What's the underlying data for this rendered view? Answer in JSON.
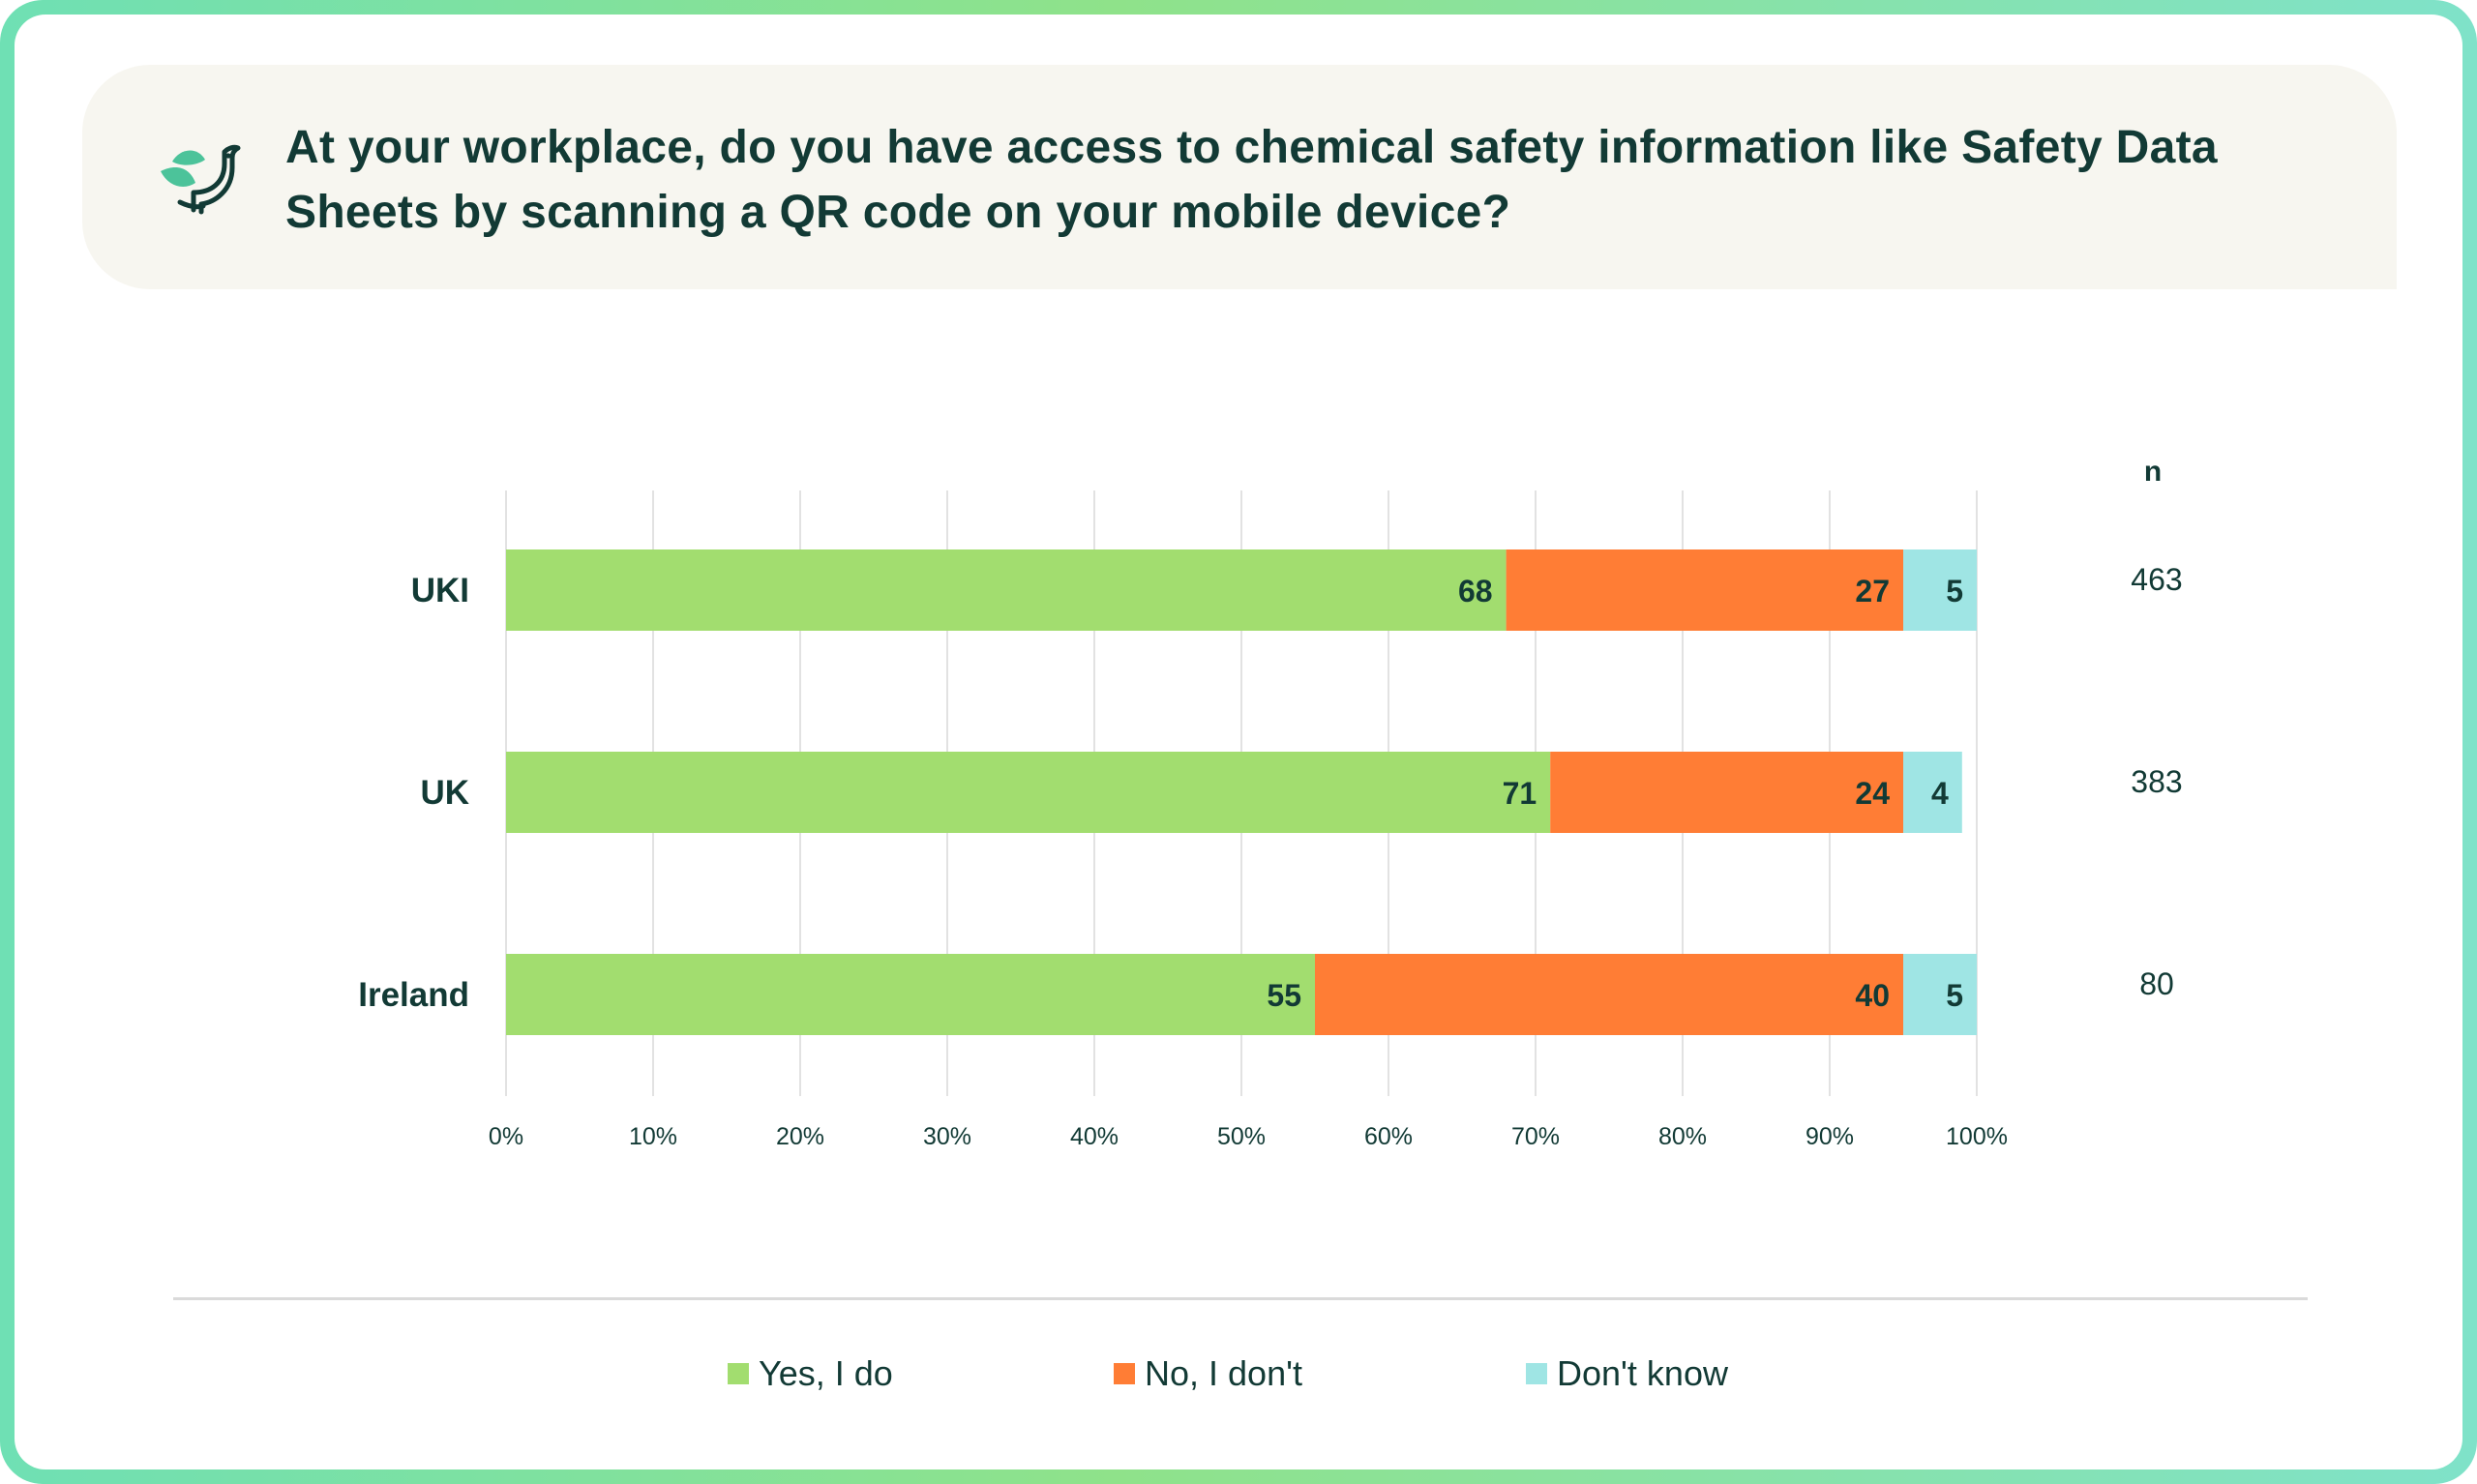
{
  "title": "At your workplace, do you have access to chemical safety information like Safety Data Sheets by scanning a QR code on your mobile device?",
  "colors": {
    "yes": "#a2dd6f",
    "no": "#ff7d35",
    "dont_know": "#9fe5e4",
    "text": "#123a35",
    "grid": "#d9d9d9"
  },
  "logo_icon": "bird-leaf-icon",
  "chart_data": {
    "type": "bar",
    "orientation": "horizontal",
    "stacked": true,
    "categories": [
      "UKI",
      "UK",
      "Ireland"
    ],
    "series": [
      {
        "name": "Yes, I do",
        "values": [
          68,
          71,
          55
        ]
      },
      {
        "name": "No, I don't",
        "values": [
          27,
          24,
          40
        ]
      },
      {
        "name": "Don't know",
        "values": [
          5,
          4,
          5
        ]
      }
    ],
    "xlim": [
      0,
      100
    ],
    "x_ticks": [
      "0%",
      "10%",
      "20%",
      "30%",
      "40%",
      "50%",
      "60%",
      "70%",
      "80%",
      "90%",
      "100%"
    ],
    "grid": true,
    "legend_position": "bottom",
    "n_header": "n",
    "n_values": [
      "463",
      "383",
      "80"
    ]
  }
}
